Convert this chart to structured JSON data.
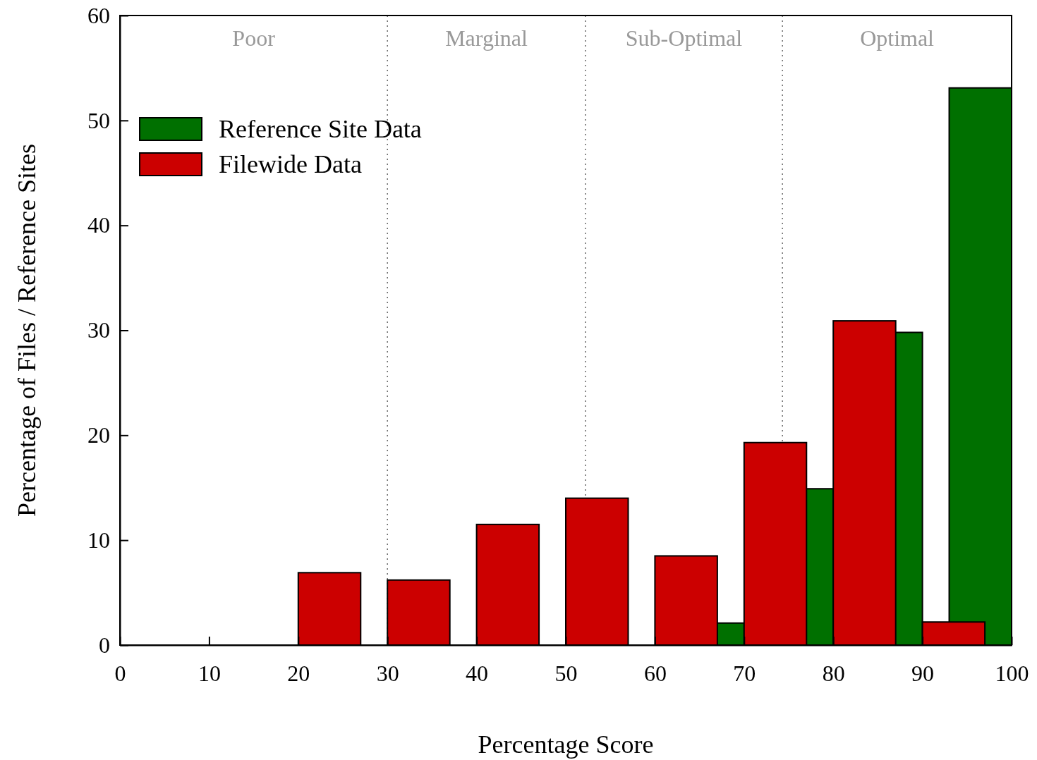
{
  "chart_data": {
    "type": "bar",
    "xlabel": "Percentage Score",
    "ylabel": "Percentage of Files / Reference Sites",
    "xlim": [
      0,
      100
    ],
    "xticks": [
      0,
      10,
      20,
      30,
      40,
      50,
      60,
      70,
      80,
      90,
      100
    ],
    "ylim": [
      0,
      60
    ],
    "yticks": [
      0,
      10,
      20,
      30,
      40,
      50,
      60
    ],
    "series": [
      {
        "name": "Reference Site Data",
        "color": "#007000",
        "x": [
          66.5,
          76.5,
          86.5,
          96.5
        ],
        "values": [
          2.1,
          14.9,
          29.8,
          53.1
        ]
      },
      {
        "name": "Filewide Data",
        "color": "#cc0000",
        "x": [
          23.5,
          33.5,
          43.5,
          53.5,
          63.5,
          73.5,
          83.5,
          93.5
        ],
        "values": [
          6.9,
          6.2,
          11.5,
          14,
          8.5,
          19.3,
          30.9,
          2.2
        ]
      }
    ],
    "ref_lines": [
      {
        "axis": "x",
        "value": 30,
        "line_style": "dotted",
        "color": "#666666"
      },
      {
        "axis": "x",
        "value": 52.2,
        "line_style": "dotted",
        "color": "#666666"
      },
      {
        "axis": "x",
        "value": 74.3,
        "line_style": "dotted",
        "color": "#666666"
      }
    ],
    "annotations": [
      "Poor",
      "Marginal",
      "Sub-Optimal",
      "Optimal"
    ],
    "legend": "top left"
  }
}
